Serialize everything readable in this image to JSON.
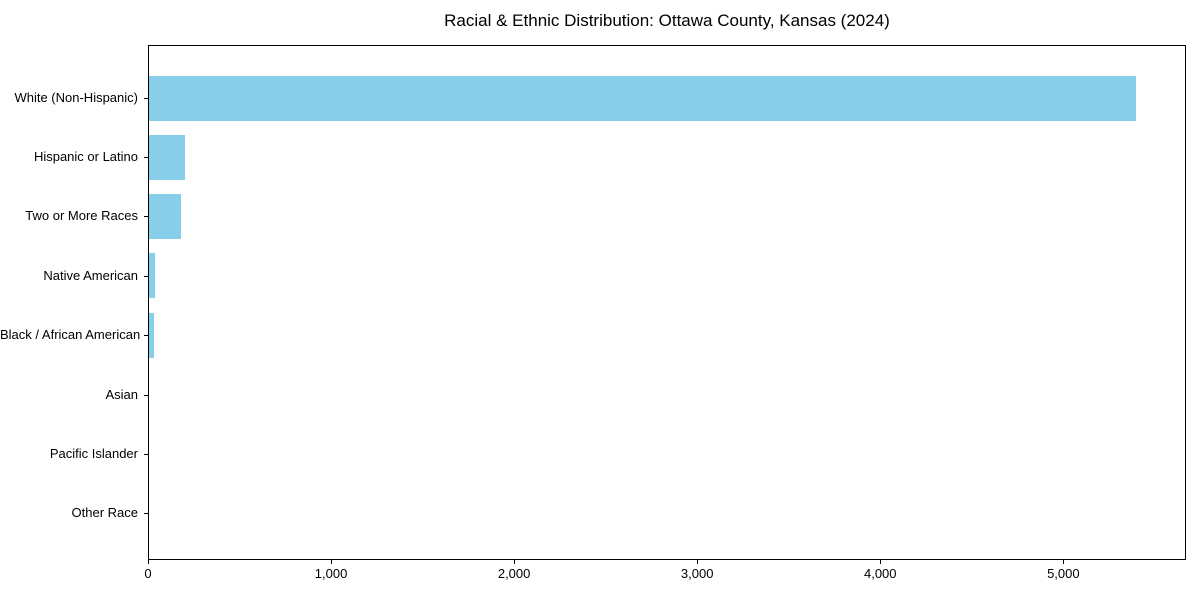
{
  "title": "Racial & Ethnic Distribution: Ottawa County, Kansas (2024)",
  "colors": {
    "bar": "#87CEEB",
    "axis": "#000000",
    "background": "#FFFFFF",
    "text": "#000000"
  },
  "chart_data": {
    "type": "bar",
    "orientation": "horizontal",
    "title": "Racial & Ethnic Distribution: Ottawa County, Kansas (2024)",
    "categories": [
      "White (Non-Hispanic)",
      "Hispanic or Latino",
      "Two or More Races",
      "Native American",
      "Black / African American",
      "Asian",
      "Pacific Islander",
      "Other Race"
    ],
    "values": [
      5400,
      198,
      175,
      34,
      28,
      0,
      0,
      0
    ],
    "xlabel": "",
    "ylabel": "",
    "xlim": [
      0,
      5670
    ],
    "xticks": [
      0,
      1000,
      2000,
      3000,
      4000,
      5000
    ],
    "xtick_labels": [
      "0",
      "1,000",
      "2,000",
      "3,000",
      "4,000",
      "5,000"
    ],
    "bar_color": "#87CEEB",
    "grid": false,
    "legend": false
  }
}
